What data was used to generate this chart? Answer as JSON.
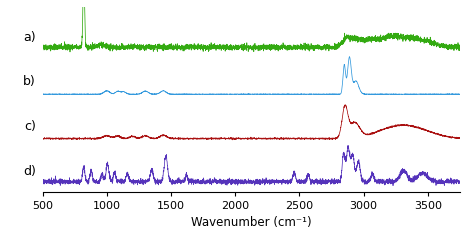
{
  "x_min": 500,
  "x_max": 3750,
  "xlabel": "Wavenumber (cm⁻¹)",
  "xticks": [
    500,
    1000,
    1500,
    2000,
    2500,
    3000,
    3500
  ],
  "labels": [
    "a)",
    "b)",
    "c)",
    "d)"
  ],
  "colors": [
    "#33aa11",
    "#3399dd",
    "#aa1111",
    "#5533bb"
  ],
  "offsets": [
    3.0,
    2.0,
    1.0,
    0.0
  ],
  "background": "#ffffff",
  "spectra": {
    "a": {
      "peaks": [
        820,
        950,
        2855,
        2900,
        2960,
        3050,
        3200,
        3350,
        3500
      ],
      "heights": [
        2.5,
        0.08,
        0.18,
        0.22,
        0.18,
        0.25,
        0.3,
        0.25,
        0.15
      ],
      "widths": [
        6,
        30,
        30,
        35,
        28,
        50,
        70,
        80,
        80
      ],
      "noise": 0.045
    },
    "b": {
      "peaks": [
        1000,
        1085,
        1130,
        1300,
        1440,
        2850,
        2890,
        2940
      ],
      "heights": [
        0.14,
        0.12,
        0.1,
        0.13,
        0.14,
        1.2,
        1.5,
        0.55
      ],
      "widths": [
        22,
        18,
        18,
        22,
        22,
        10,
        14,
        22
      ],
      "noise": 0.006
    },
    "c": {
      "peaks": [
        1000,
        1085,
        1200,
        1300,
        1440,
        2855,
        2930,
        3150,
        3300,
        3450
      ],
      "heights": [
        0.1,
        0.09,
        0.08,
        0.1,
        0.12,
        1.1,
        0.55,
        0.2,
        0.28,
        0.24
      ],
      "widths": [
        28,
        22,
        22,
        25,
        26,
        22,
        40,
        110,
        110,
        130
      ],
      "noise": 0.012
    },
    "d": {
      "peaks": [
        820,
        878,
        963,
        1005,
        1060,
        1160,
        1350,
        1460,
        1620,
        2460,
        2570,
        2845,
        2880,
        2915,
        2960,
        3070,
        3310,
        3460
      ],
      "heights": [
        0.35,
        0.28,
        0.2,
        0.45,
        0.25,
        0.22,
        0.32,
        0.65,
        0.16,
        0.25,
        0.18,
        0.7,
        0.85,
        0.65,
        0.5,
        0.2,
        0.28,
        0.22
      ],
      "widths": [
        9,
        9,
        9,
        11,
        9,
        9,
        11,
        13,
        9,
        9,
        9,
        11,
        13,
        13,
        14,
        11,
        28,
        38
      ],
      "noise": 0.03
    }
  }
}
